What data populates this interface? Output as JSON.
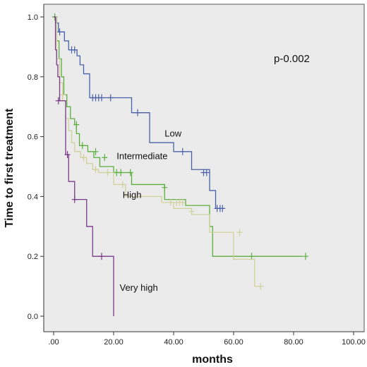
{
  "chart_data": {
    "type": "line",
    "subtype": "kaplan-meier",
    "title": "",
    "xlabel": "months",
    "ylabel": "Time to first treatment",
    "xlim": [
      0,
      100
    ],
    "ylim": [
      0,
      1.0
    ],
    "x_ticks": [
      ".00",
      "20.00",
      "40.00",
      "60.00",
      "80.00",
      "100.00"
    ],
    "y_ticks": [
      "0.0",
      "0.2",
      "0.4",
      "0.6",
      "0.8",
      "1.0"
    ],
    "grid": false,
    "background": "#ebebeb",
    "annotation": "p-0.002",
    "series": [
      {
        "name": "Low",
        "color": "#4a62a8",
        "steps": [
          [
            0,
            1.0
          ],
          [
            0.8,
            0.98
          ],
          [
            1.6,
            0.95
          ],
          [
            3.6,
            0.92
          ],
          [
            5,
            0.89
          ],
          [
            7.8,
            0.87
          ],
          [
            8.8,
            0.84
          ],
          [
            10,
            0.81
          ],
          [
            12,
            0.73
          ],
          [
            26,
            0.68
          ],
          [
            32,
            0.63
          ],
          [
            32,
            0.58
          ],
          [
            40,
            0.55
          ],
          [
            46,
            0.49
          ],
          [
            52,
            0.42
          ],
          [
            54,
            0.36
          ],
          [
            57,
            0.36
          ]
        ],
        "censored": [
          [
            2,
            0.95
          ],
          [
            6,
            0.89
          ],
          [
            7,
            0.89
          ],
          [
            13,
            0.73
          ],
          [
            14,
            0.73
          ],
          [
            15,
            0.73
          ],
          [
            16,
            0.73
          ],
          [
            19,
            0.73
          ],
          [
            28,
            0.68
          ],
          [
            43,
            0.55
          ],
          [
            50,
            0.48
          ],
          [
            51,
            0.48
          ],
          [
            54.5,
            0.36
          ],
          [
            55.5,
            0.36
          ],
          [
            56.3,
            0.36
          ]
        ]
      },
      {
        "name": "Intermediate",
        "color": "#5cae3e",
        "steps": [
          [
            0,
            1.0
          ],
          [
            1,
            0.92
          ],
          [
            1.8,
            0.86
          ],
          [
            2.6,
            0.8
          ],
          [
            3.4,
            0.74
          ],
          [
            4.4,
            0.7
          ],
          [
            5.6,
            0.66
          ],
          [
            7,
            0.64
          ],
          [
            7.6,
            0.61
          ],
          [
            8.6,
            0.57
          ],
          [
            11.4,
            0.55
          ],
          [
            13.4,
            0.53
          ],
          [
            15.4,
            0.5
          ],
          [
            20,
            0.48
          ],
          [
            26,
            0.44
          ],
          [
            37,
            0.39
          ],
          [
            44,
            0.37
          ],
          [
            52,
            0.3
          ],
          [
            53,
            0.2
          ],
          [
            83,
            0.2
          ]
        ],
        "censored": [
          [
            0.4,
            1.0
          ],
          [
            7.6,
            0.64
          ],
          [
            9.6,
            0.57
          ],
          [
            14,
            0.55
          ],
          [
            17,
            0.53
          ],
          [
            21,
            0.48
          ],
          [
            22.4,
            0.48
          ],
          [
            25.6,
            0.48
          ],
          [
            37,
            0.43
          ],
          [
            66,
            0.2
          ],
          [
            84,
            0.2
          ]
        ]
      },
      {
        "name": "High",
        "color": "#cfd39a",
        "steps": [
          [
            0,
            1.0
          ],
          [
            1,
            0.86
          ],
          [
            2,
            0.78
          ],
          [
            3,
            0.72
          ],
          [
            4,
            0.66
          ],
          [
            5,
            0.62
          ],
          [
            6,
            0.58
          ],
          [
            7,
            0.55
          ],
          [
            9,
            0.53
          ],
          [
            11,
            0.51
          ],
          [
            13,
            0.49
          ],
          [
            15,
            0.48
          ],
          [
            20,
            0.44
          ],
          [
            24,
            0.4
          ],
          [
            36,
            0.38
          ],
          [
            40,
            0.36
          ],
          [
            46,
            0.34
          ],
          [
            52,
            0.28
          ],
          [
            60,
            0.19
          ],
          [
            67,
            0.1
          ],
          [
            69,
            0.1
          ]
        ],
        "censored": [
          [
            3,
            0.74
          ],
          [
            10,
            0.53
          ],
          [
            14,
            0.49
          ],
          [
            18,
            0.48
          ],
          [
            23,
            0.44
          ],
          [
            39,
            0.38
          ],
          [
            41,
            0.38
          ],
          [
            42,
            0.38
          ],
          [
            43,
            0.38
          ],
          [
            46,
            0.35
          ],
          [
            62,
            0.28
          ],
          [
            69,
            0.1
          ]
        ]
      },
      {
        "name": "Very high",
        "color": "#7b3a8a",
        "steps": [
          [
            0,
            1.0
          ],
          [
            0.6,
            0.89
          ],
          [
            1,
            0.84
          ],
          [
            1.4,
            0.8
          ],
          [
            2,
            0.72
          ],
          [
            4,
            0.54
          ],
          [
            5,
            0.45
          ],
          [
            7,
            0.39
          ],
          [
            11,
            0.3
          ],
          [
            13,
            0.2
          ],
          [
            20,
            0.0
          ]
        ],
        "censored": [
          [
            1.6,
            0.72
          ],
          [
            4.6,
            0.54
          ],
          [
            7,
            0.39
          ],
          [
            16,
            0.2
          ]
        ]
      }
    ],
    "curve_labels": [
      {
        "series": "Low",
        "text": "Low",
        "x": 37,
        "y": 0.6
      },
      {
        "series": "Intermediate",
        "text": "Intermediate",
        "x": 21,
        "y": 0.525
      },
      {
        "series": "High",
        "text": "High",
        "x": 23,
        "y": 0.395
      },
      {
        "series": "Very high",
        "text": "Very high",
        "x": 22,
        "y": 0.085
      }
    ]
  }
}
